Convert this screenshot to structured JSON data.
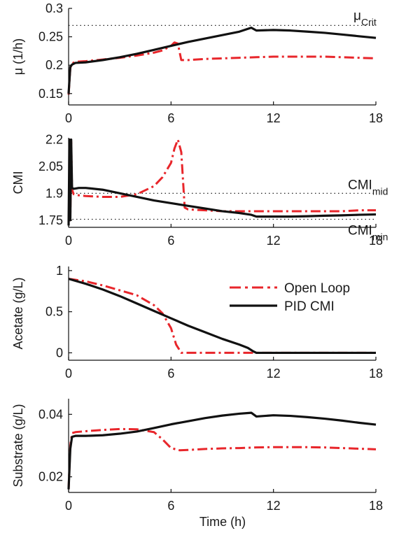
{
  "figure": {
    "xlabel": "Time (h)"
  },
  "legend": {
    "entries": [
      {
        "label": "Open Loop",
        "color": "#e8262b",
        "style": "dashdot"
      },
      {
        "label": "PID CMI",
        "color": "#111111",
        "style": "solid"
      }
    ]
  },
  "chart_data": [
    {
      "type": "line",
      "ylabel": "μ (1/h)",
      "xlim": [
        0,
        18
      ],
      "ylim": [
        0.13,
        0.3
      ],
      "xticks": [
        "0",
        "6",
        "12",
        "18"
      ],
      "yticks": [
        "0.15",
        "0.2",
        "0.25",
        "0.3"
      ],
      "ytick_values": [
        0.15,
        0.2,
        0.25,
        0.3
      ],
      "reference_lines": [
        {
          "y": 0.27,
          "label": "μ",
          "sub": "Crit"
        }
      ],
      "series": [
        {
          "name": "Open Loop",
          "color": "#e8262b",
          "style": "dashdot",
          "x": [
            0,
            0.1,
            0.2,
            0.4,
            1,
            2,
            3,
            4,
            5,
            5.5,
            6,
            6.2,
            6.4,
            6.6,
            7,
            8,
            9,
            10,
            11,
            12,
            13,
            14,
            15,
            16,
            17,
            18
          ],
          "y": [
            0.148,
            0.195,
            0.203,
            0.206,
            0.207,
            0.21,
            0.213,
            0.217,
            0.222,
            0.226,
            0.234,
            0.24,
            0.238,
            0.209,
            0.209,
            0.211,
            0.212,
            0.213,
            0.214,
            0.215,
            0.215,
            0.215,
            0.215,
            0.214,
            0.213,
            0.212
          ]
        },
        {
          "name": "PID CMI",
          "color": "#111111",
          "style": "solid",
          "x": [
            0,
            0.1,
            0.2,
            0.4,
            1,
            2,
            3,
            4,
            5,
            6,
            7,
            8,
            9,
            10,
            10.7,
            11,
            12,
            13,
            14,
            15,
            16,
            17,
            18
          ],
          "y": [
            0.15,
            0.197,
            0.201,
            0.204,
            0.205,
            0.209,
            0.214,
            0.22,
            0.227,
            0.234,
            0.241,
            0.247,
            0.253,
            0.259,
            0.266,
            0.261,
            0.262,
            0.261,
            0.259,
            0.257,
            0.254,
            0.251,
            0.248
          ]
        }
      ]
    },
    {
      "type": "line",
      "ylabel": "CMI",
      "xlim": [
        0,
        18
      ],
      "ylim": [
        1.71,
        2.21
      ],
      "xticks": [
        "0",
        "6",
        "12",
        "18"
      ],
      "yticks": [
        "1.75",
        "1.9",
        "2.05",
        "2.2"
      ],
      "ytick_values": [
        1.75,
        1.9,
        2.05,
        2.2
      ],
      "reference_lines": [
        {
          "y": 1.9,
          "label": "CMI",
          "sub": "mid"
        },
        {
          "y": 1.755,
          "label": "CMI",
          "sub": "min"
        }
      ],
      "series": [
        {
          "name": "Open Loop",
          "color": "#e8262b",
          "style": "dashdot",
          "x": [
            0,
            0.05,
            0.1,
            0.15,
            0.2,
            0.3,
            0.5,
            1,
            2,
            3,
            4,
            5,
            5.5,
            6,
            6.2,
            6.4,
            6.6,
            6.8,
            7,
            8,
            9,
            10,
            11,
            12,
            13,
            14,
            15,
            16,
            17,
            18
          ],
          "y": [
            2.2,
            2.2,
            1.75,
            2.2,
            1.92,
            1.895,
            1.89,
            1.885,
            1.88,
            1.88,
            1.895,
            1.94,
            1.99,
            2.07,
            2.15,
            2.2,
            2.13,
            1.82,
            1.81,
            1.805,
            1.8,
            1.8,
            1.8,
            1.8,
            1.8,
            1.8,
            1.8,
            1.8,
            1.805,
            1.805
          ]
        },
        {
          "name": "PID CMI",
          "color": "#111111",
          "style": "solid",
          "x": [
            0,
            0.05,
            0.1,
            0.15,
            0.2,
            0.3,
            0.6,
            1,
            2,
            3,
            4,
            5,
            6,
            7,
            8,
            9,
            10,
            10.7,
            11,
            12,
            13,
            14,
            15,
            16,
            17,
            18
          ],
          "y": [
            1.72,
            2.2,
            1.75,
            2.2,
            1.93,
            1.925,
            1.93,
            1.93,
            1.92,
            1.9,
            1.88,
            1.86,
            1.845,
            1.83,
            1.815,
            1.8,
            1.79,
            1.78,
            1.77,
            1.77,
            1.77,
            1.772,
            1.775,
            1.777,
            1.78,
            1.782
          ]
        }
      ]
    },
    {
      "type": "line",
      "ylabel": "Acetate (g/L)",
      "xlim": [
        0,
        18
      ],
      "ylim": [
        -0.09,
        1.05
      ],
      "xticks": [
        "0",
        "6",
        "12",
        "18"
      ],
      "yticks": [
        "0",
        "0.5",
        "1"
      ],
      "ytick_values": [
        0,
        0.5,
        1
      ],
      "reference_lines": [],
      "series": [
        {
          "name": "Open Loop",
          "color": "#e8262b",
          "style": "dashdot",
          "x": [
            0,
            1,
            2,
            3,
            4,
            5,
            5.5,
            6,
            6.3,
            6.6,
            7,
            8,
            9,
            10,
            11,
            12,
            13,
            14,
            15,
            16,
            17,
            18
          ],
          "y": [
            0.9,
            0.87,
            0.82,
            0.76,
            0.7,
            0.58,
            0.48,
            0.3,
            0.1,
            0.0,
            0.0,
            0.0,
            0.0,
            0.0,
            0.0,
            0.0,
            0.0,
            0.0,
            0.0,
            0.0,
            0.0,
            0.0
          ]
        },
        {
          "name": "PID CMI",
          "color": "#111111",
          "style": "solid",
          "x": [
            0,
            1,
            2,
            3,
            4,
            5,
            6,
            7,
            8,
            9,
            10,
            10.5,
            10.8,
            11,
            12,
            13,
            14,
            15,
            16,
            17,
            18
          ],
          "y": [
            0.9,
            0.84,
            0.77,
            0.69,
            0.6,
            0.51,
            0.42,
            0.33,
            0.25,
            0.17,
            0.1,
            0.06,
            0.02,
            0.0,
            0.0,
            0.0,
            0.0,
            0.0,
            0.0,
            0.0,
            0.0
          ]
        }
      ]
    },
    {
      "type": "line",
      "ylabel": "Substrate (g/L)",
      "xlim": [
        0,
        18
      ],
      "ylim": [
        0.015,
        0.045
      ],
      "xticks": [
        "0",
        "6",
        "12",
        "18"
      ],
      "yticks": [
        "0.02",
        "0.04"
      ],
      "ytick_values": [
        0.02,
        0.04
      ],
      "reference_lines": [],
      "series": [
        {
          "name": "Open Loop",
          "color": "#e8262b",
          "style": "dashdot",
          "x": [
            0,
            0.1,
            0.2,
            0.4,
            1,
            2,
            3,
            4,
            5,
            5.5,
            6,
            6.5,
            7,
            8,
            9,
            10,
            11,
            12,
            13,
            14,
            15,
            16,
            17,
            18
          ],
          "y": [
            0.016,
            0.03,
            0.034,
            0.0343,
            0.0346,
            0.035,
            0.0353,
            0.0352,
            0.0343,
            0.032,
            0.0292,
            0.0285,
            0.0286,
            0.0289,
            0.0291,
            0.0292,
            0.0294,
            0.0295,
            0.0295,
            0.0295,
            0.0294,
            0.0292,
            0.029,
            0.0288
          ]
        },
        {
          "name": "PID CMI",
          "color": "#111111",
          "style": "solid",
          "x": [
            0,
            0.1,
            0.2,
            0.4,
            1,
            2,
            3,
            4,
            5,
            6,
            7,
            8,
            9,
            10,
            10.7,
            11,
            12,
            13,
            14,
            15,
            16,
            17,
            18
          ],
          "y": [
            0.016,
            0.029,
            0.0328,
            0.0331,
            0.0331,
            0.0333,
            0.0338,
            0.0345,
            0.0356,
            0.0368,
            0.0378,
            0.0388,
            0.0396,
            0.0402,
            0.0405,
            0.0393,
            0.0397,
            0.0395,
            0.0391,
            0.0386,
            0.038,
            0.0373,
            0.0367
          ]
        }
      ]
    }
  ]
}
